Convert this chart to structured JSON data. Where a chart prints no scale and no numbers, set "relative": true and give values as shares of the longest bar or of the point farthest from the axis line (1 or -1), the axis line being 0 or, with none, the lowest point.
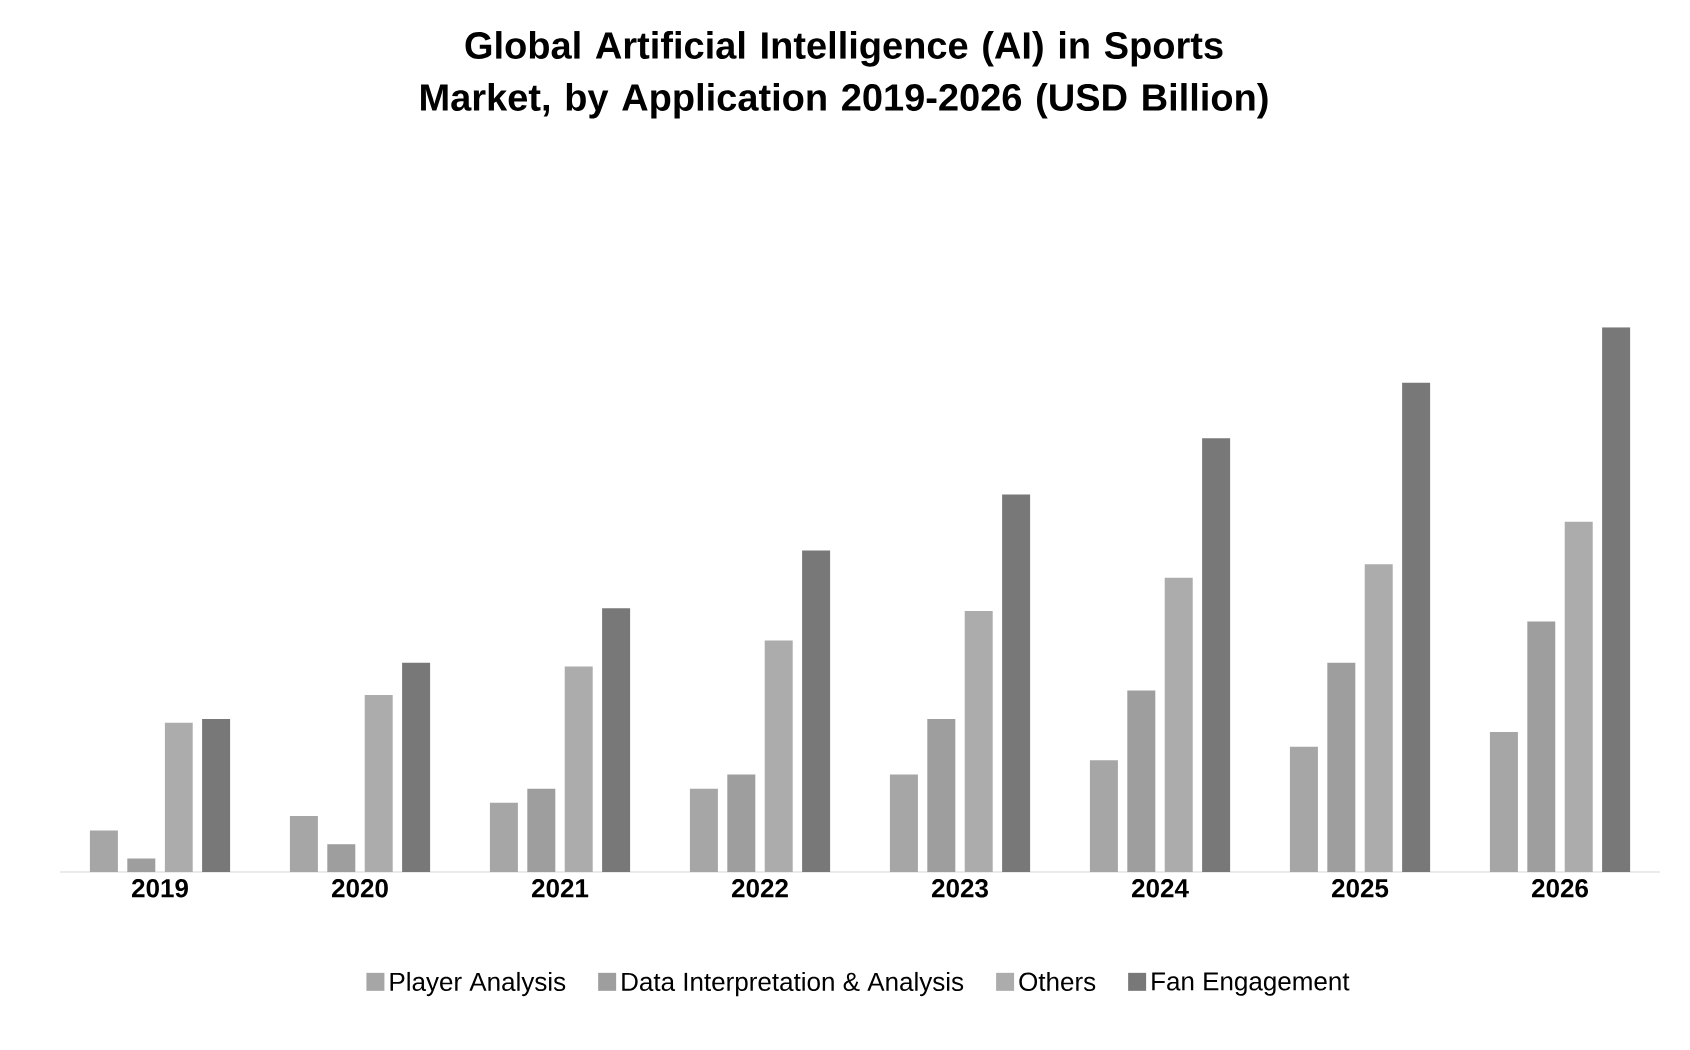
{
  "chart_data": {
    "type": "bar",
    "title": "Global Artificial Intelligence (AI) in Sports Market, by Application 2019-2026 (USD Billion)",
    "relative": true,
    "legend": "bottom",
    "grid": false,
    "categories": [
      "2019",
      "2020",
      "2021",
      "2022",
      "2023",
      "2024",
      "2025",
      "2026"
    ],
    "series": [
      {
        "name": "Player Analysis",
        "color": "#a6a6a6",
        "values": [
          0.076,
          0.103,
          0.127,
          0.153,
          0.179,
          0.205,
          0.23,
          0.257
        ]
      },
      {
        "name": "Data Interpretation & Analysis",
        "color": "#9e9e9e",
        "values": [
          0.025,
          0.051,
          0.153,
          0.179,
          0.281,
          0.333,
          0.384,
          0.46
        ]
      },
      {
        "name": "Others",
        "color": "#acacac",
        "values": [
          0.274,
          0.325,
          0.377,
          0.425,
          0.479,
          0.54,
          0.565,
          0.643
        ]
      },
      {
        "name": "Fan Engagement",
        "color": "#787878",
        "values": [
          0.281,
          0.384,
          0.484,
          0.59,
          0.693,
          0.796,
          0.898,
          1
        ]
      }
    ]
  }
}
